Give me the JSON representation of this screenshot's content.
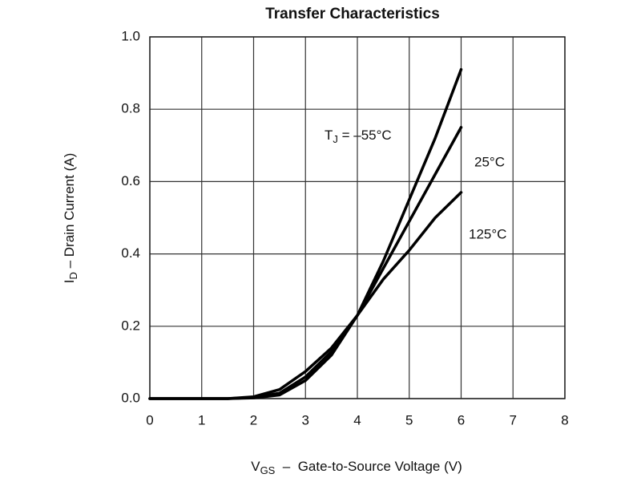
{
  "chart_data": {
    "type": "line",
    "title": "Transfer Characteristics",
    "x": [
      0,
      0.5,
      1,
      1.5,
      2,
      2.5,
      3,
      3.5,
      4,
      4.5,
      5,
      5.5,
      6
    ],
    "series": [
      {
        "name": "–55°C",
        "color": "#000000",
        "values": [
          0,
          0,
          0,
          0,
          0.002,
          0.01,
          0.05,
          0.12,
          0.23,
          0.38,
          0.55,
          0.72,
          0.91
        ]
      },
      {
        "name": "25°C",
        "color": "#000000",
        "values": [
          0,
          0,
          0,
          0,
          0.003,
          0.015,
          0.06,
          0.13,
          0.23,
          0.36,
          0.49,
          0.62,
          0.75
        ]
      },
      {
        "name": "125°C",
        "color": "#000000",
        "values": [
          0,
          0,
          0,
          0,
          0.005,
          0.025,
          0.075,
          0.14,
          0.23,
          0.33,
          0.41,
          0.5,
          0.57
        ]
      }
    ],
    "annotation_prefix": [
      "T",
      "J",
      " = "
    ],
    "xlabel_parts": [
      "V",
      "GS",
      "  –  Gate-to-Source Voltage (V)"
    ],
    "ylabel_parts": [
      "I",
      "D",
      " – Drain Current (A)"
    ],
    "xlim": [
      0,
      8
    ],
    "xticks": [
      0,
      1,
      2,
      3,
      4,
      5,
      6,
      7,
      8
    ],
    "ylim": [
      0,
      1
    ],
    "yticks": [
      {
        "value": 0,
        "label": "0.0"
      },
      0.2,
      0.4,
      0.6,
      0.8,
      {
        "value": 1,
        "label": "1.0"
      }
    ],
    "grid": true
  }
}
